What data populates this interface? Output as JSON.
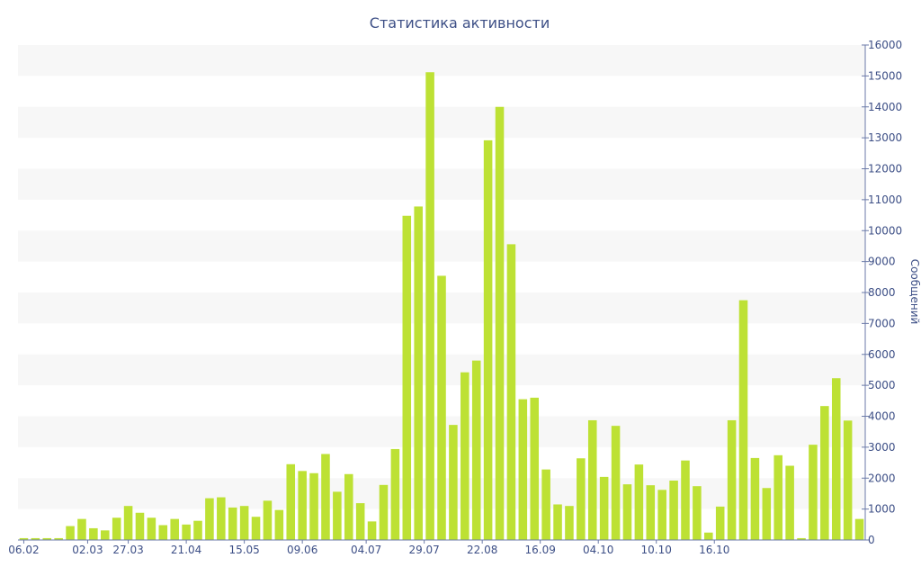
{
  "chart_data": {
    "type": "bar",
    "title": "Статистика активности",
    "xlabel": "",
    "ylabel": "Сообщений",
    "ylim": [
      0,
      16000
    ],
    "yticks": [
      0,
      1000,
      2000,
      3000,
      4000,
      5000,
      6000,
      7000,
      8000,
      9000,
      10000,
      11000,
      12000,
      13000,
      14000,
      15000,
      16000
    ],
    "y_axis_position": "right",
    "grid": "alternating horizontal bands",
    "legend": "none",
    "colors": {
      "bar": "#bde134",
      "band": "#f7f7f7",
      "text": "#3d4f86",
      "axis": "#6b7aa8"
    },
    "xticks": [
      {
        "index": 0,
        "label": "06.02"
      },
      {
        "index": 5.5,
        "label": "02.03"
      },
      {
        "index": 9,
        "label": "27.03"
      },
      {
        "index": 14,
        "label": "21.04"
      },
      {
        "index": 19,
        "label": "15.05"
      },
      {
        "index": 24,
        "label": "09.06"
      },
      {
        "index": 29.5,
        "label": "04.07"
      },
      {
        "index": 34.5,
        "label": "29.07"
      },
      {
        "index": 39.5,
        "label": "22.08"
      },
      {
        "index": 44.5,
        "label": "16.09"
      },
      {
        "index": 49.5,
        "label": "04.10"
      },
      {
        "index": 54.5,
        "label": "10.10"
      },
      {
        "index": 59.5,
        "label": "16.10"
      }
    ],
    "values": [
      60,
      60,
      60,
      60,
      450,
      680,
      380,
      310,
      720,
      1100,
      880,
      720,
      480,
      680,
      500,
      620,
      1350,
      1380,
      1050,
      1100,
      750,
      1270,
      970,
      2450,
      2230,
      2160,
      2780,
      1560,
      2130,
      1190,
      600,
      1780,
      2940,
      10480,
      10780,
      15120,
      8540,
      3720,
      5420,
      5800,
      12920,
      14000,
      9560,
      4550,
      4600,
      2280,
      1150,
      1100,
      2640,
      3870,
      2040,
      3690,
      1800,
      2440,
      1770,
      1620,
      1920,
      2570,
      1740,
      240,
      1080,
      3870,
      7750,
      2650,
      1680,
      2740,
      2400,
      60,
      3080,
      4330,
      5230,
      3860,
      680
    ]
  }
}
